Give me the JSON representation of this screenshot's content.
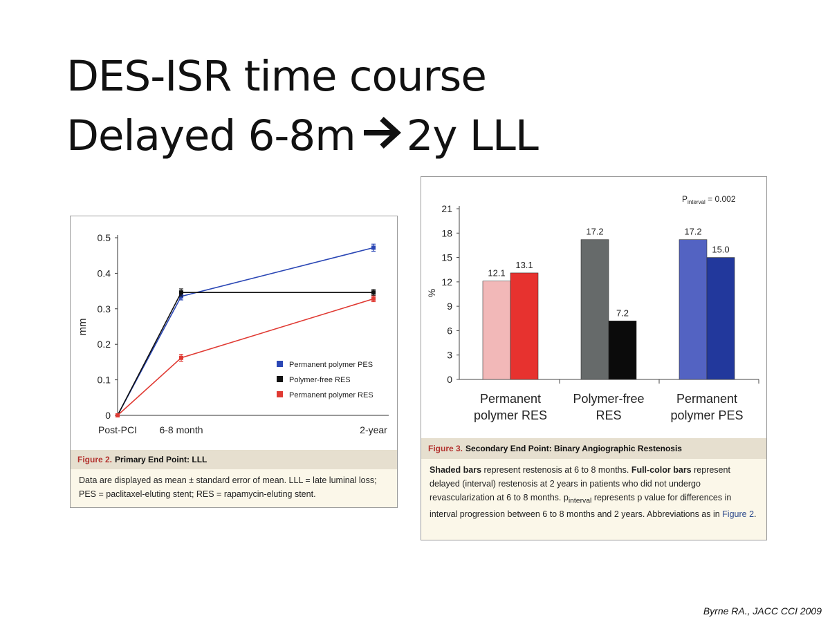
{
  "slide": {
    "title_line1": "DES-ISR time course",
    "title_line2_before": "Delayed 6-8m",
    "title_line2_after": "2y LLL",
    "citation": "Byrne RA., JACC CCI 2009"
  },
  "figure2": {
    "label": "Figure 2.",
    "title": "Primary End Point: LLL",
    "caption": "Data are displayed as mean ± standard error of mean. LLL = late luminal loss; PES = paclitaxel-eluting stent; RES = rapamycin-eluting stent."
  },
  "figure3": {
    "label": "Figure 3.",
    "title": "Secondary End Point: Binary Angiographic Restenosis",
    "caption_bold1": "Shaded bars",
    "caption_text1": " represent restenosis at 6 to 8 months. ",
    "caption_bold2": "Full-color bars",
    "caption_text2": " represent delayed (interval) restenosis at 2 years in patients who did not undergo revascularization at 6 to 8 months. p",
    "caption_sub": "interval",
    "caption_text3": " represents p value for differences in interval progression between 6 to 8 months and 2 years. Abbreviations as in ",
    "caption_link": "Figure 2",
    "caption_end": "."
  },
  "chart_data": [
    {
      "type": "line",
      "title": "",
      "xlabel": "",
      "ylabel": "mm",
      "categories": [
        "Post-PCI",
        "6-8 month",
        "2-year"
      ],
      "ylim": [
        0,
        0.5
      ],
      "yticks": [
        0,
        0.1,
        0.2,
        0.3,
        0.4,
        0.5
      ],
      "ytick_labels": [
        "0",
        "0.1",
        "0.2",
        "0.3",
        "0.4",
        "0.5"
      ],
      "legend_position": "right",
      "grid": false,
      "series": [
        {
          "name": "Permanent polymer PES",
          "color": "#2b47b5",
          "values": [
            0,
            0.335,
            0.472
          ],
          "errors": [
            0,
            0.01,
            0.01
          ]
        },
        {
          "name": "Polymer-free RES",
          "color": "#111111",
          "values": [
            0,
            0.346,
            0.346
          ],
          "errors": [
            0,
            0.01,
            0.008
          ]
        },
        {
          "name": "Permanent polymer RES",
          "color": "#e03a33",
          "values": [
            0,
            0.162,
            0.328
          ],
          "errors": [
            0,
            0.01,
            0.008
          ]
        }
      ]
    },
    {
      "type": "bar",
      "title": "",
      "xlabel": "",
      "ylabel": "%",
      "annotation_main": "P",
      "annotation_sub": "interval",
      "annotation_rest": " = 0.002",
      "categories": [
        "Permanent polymer RES",
        "Polymer-free RES",
        "Permanent polymer PES"
      ],
      "category_lines": [
        [
          "Permanent",
          "polymer RES"
        ],
        [
          "Polymer-free",
          "RES"
        ],
        [
          "Permanent",
          "polymer PES"
        ]
      ],
      "ylim": [
        0,
        21
      ],
      "yticks": [
        0,
        3,
        6,
        9,
        12,
        15,
        18,
        21
      ],
      "ytick_labels": [
        "0",
        "3",
        "6",
        "9",
        "12",
        "15",
        "18",
        "21"
      ],
      "grid": false,
      "series": [
        {
          "colors": [
            "#f2b8b8",
            "#666a6a",
            "#5363c2"
          ],
          "values": [
            12.1,
            17.2,
            17.2
          ],
          "labels": [
            "12.1",
            "17.2",
            "17.2"
          ]
        },
        {
          "colors": [
            "#e7322f",
            "#0b0b0b",
            "#22389c"
          ],
          "values": [
            13.1,
            7.2,
            15.0
          ],
          "labels": [
            "13.1",
            "7.2",
            "15.0"
          ]
        }
      ]
    }
  ]
}
